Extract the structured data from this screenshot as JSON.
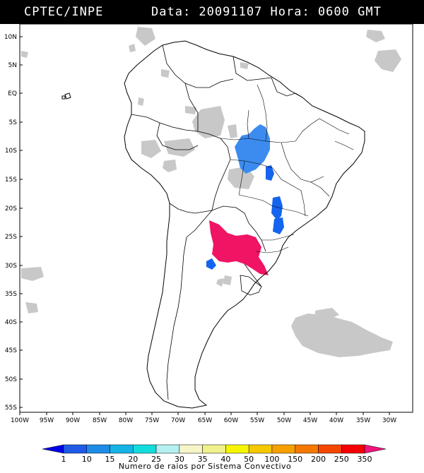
{
  "header": {
    "agency": "CPTEC/INPE",
    "datetime": "Data: 20091107 Hora: 0600 GMT"
  },
  "map": {
    "region": "South America",
    "lat_labels": [
      "10N",
      "5N",
      "EQ",
      "5S",
      "10S",
      "15S",
      "20S",
      "25S",
      "30S",
      "35S",
      "40S",
      "45S",
      "50S",
      "55S"
    ],
    "lon_labels": [
      "100W",
      "95W",
      "90W",
      "85W",
      "80W",
      "75W",
      "70W",
      "65W",
      "60W",
      "55W",
      "50W",
      "45W",
      "40W",
      "35W",
      "30W"
    ],
    "colors": {
      "cloud": "#c8c8c8",
      "low_count": "#1464f0",
      "mid_count": "#3c8cf0",
      "high_count": "#f01464"
    }
  },
  "colorbar": {
    "ticks": [
      "1",
      "10",
      "15",
      "20",
      "25",
      "30",
      "35",
      "40",
      "50",
      "100",
      "150",
      "200",
      "250",
      "350"
    ],
    "colors": [
      "#0000e6",
      "#1e5ae6",
      "#1e8ce6",
      "#14b4e6",
      "#14dcdc",
      "#b4f0f0",
      "#f5f5c8",
      "#f0f08c",
      "#f5f500",
      "#f5c800",
      "#f5a000",
      "#f57800",
      "#f54600",
      "#f50000",
      "#f0147d"
    ],
    "title": "Numero de raios por Sistema Convectivo"
  }
}
